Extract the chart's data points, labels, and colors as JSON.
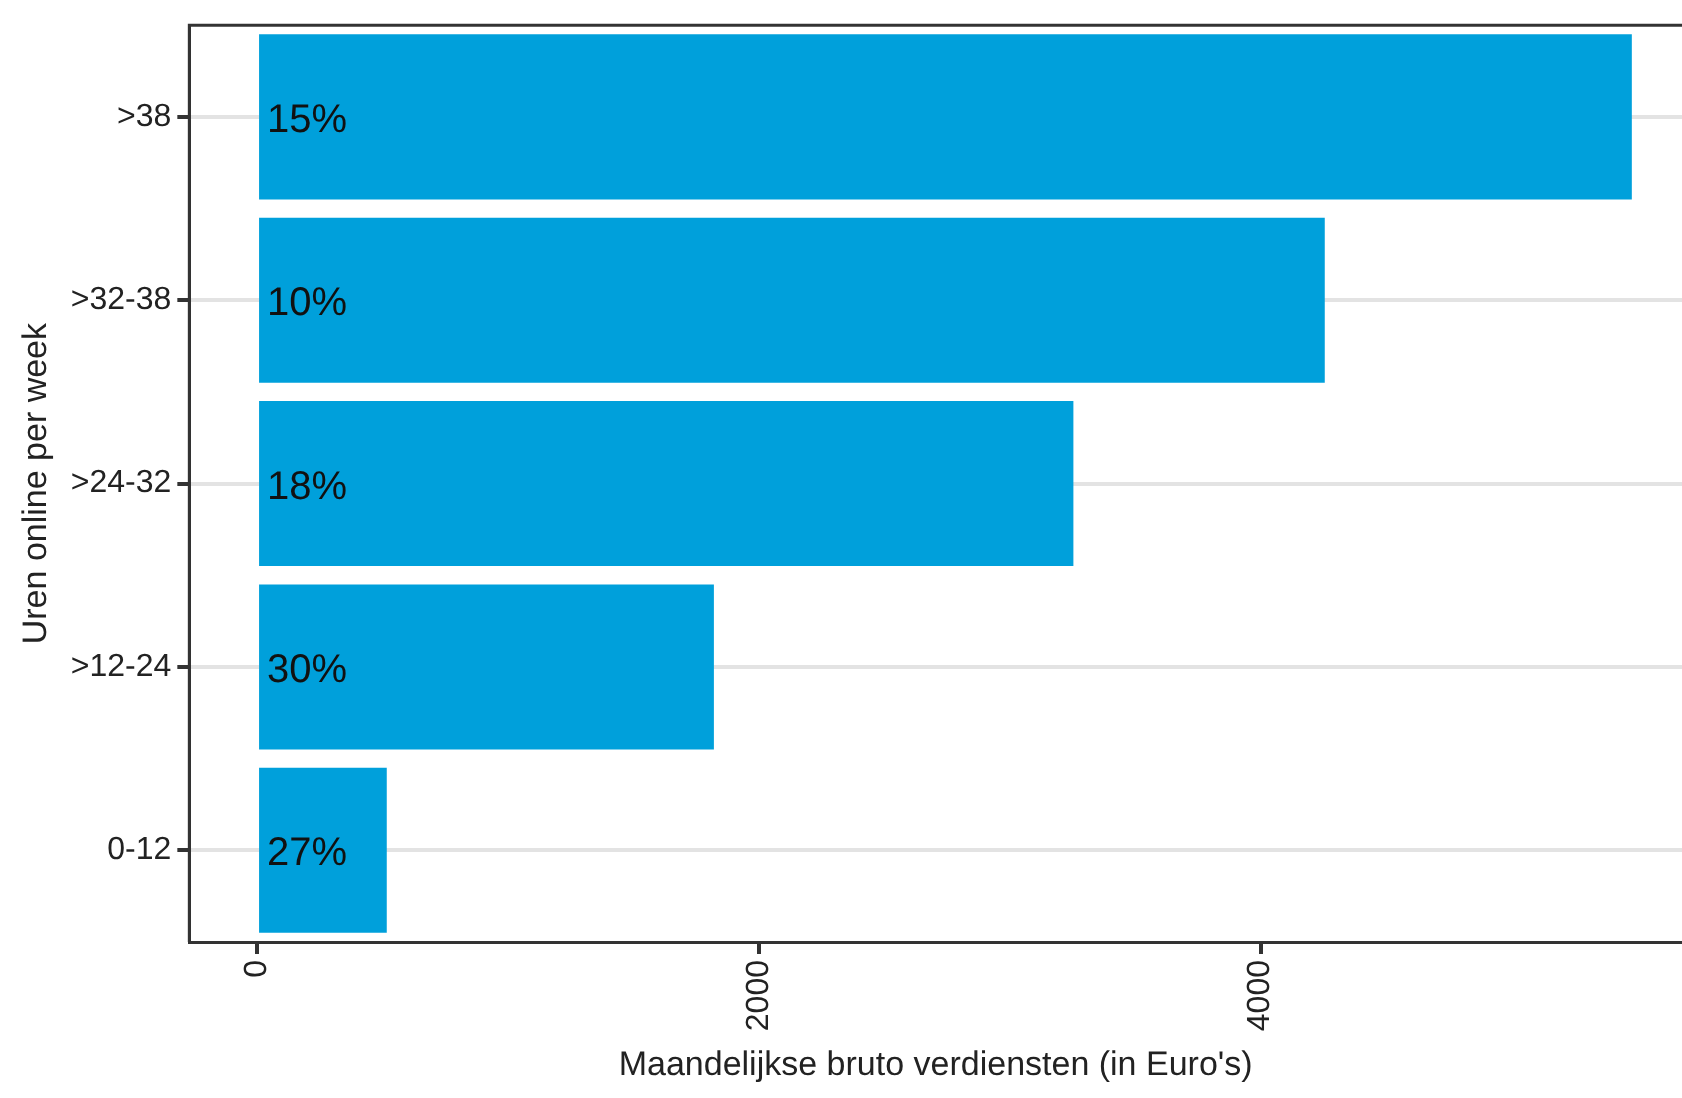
{
  "chart_data": {
    "type": "bar",
    "orientation": "horizontal",
    "xlabel": "Maandelijkse bruto verdiensten (in Euro's)",
    "ylabel": "Uren online per week",
    "categories": [
      ">38",
      ">32-38",
      ">24-32",
      ">12-24",
      "0-12"
    ],
    "values": [
      5480,
      4256,
      3254,
      1821,
      517
    ],
    "annotations": [
      {
        "text": "15%",
        "y": ">38"
      },
      {
        "text": "10%",
        "y": ">32-38"
      },
      {
        "text": "18%",
        "y": ">24-32"
      },
      {
        "text": "30%",
        "y": ">12-24"
      },
      {
        "text": "27%",
        "y": "0-12"
      }
    ],
    "color": "#00a0db",
    "xlim": [
      -270,
      5680
    ],
    "xticks": [
      0,
      2000,
      4000
    ],
    "grid": "y",
    "legend": false
  }
}
